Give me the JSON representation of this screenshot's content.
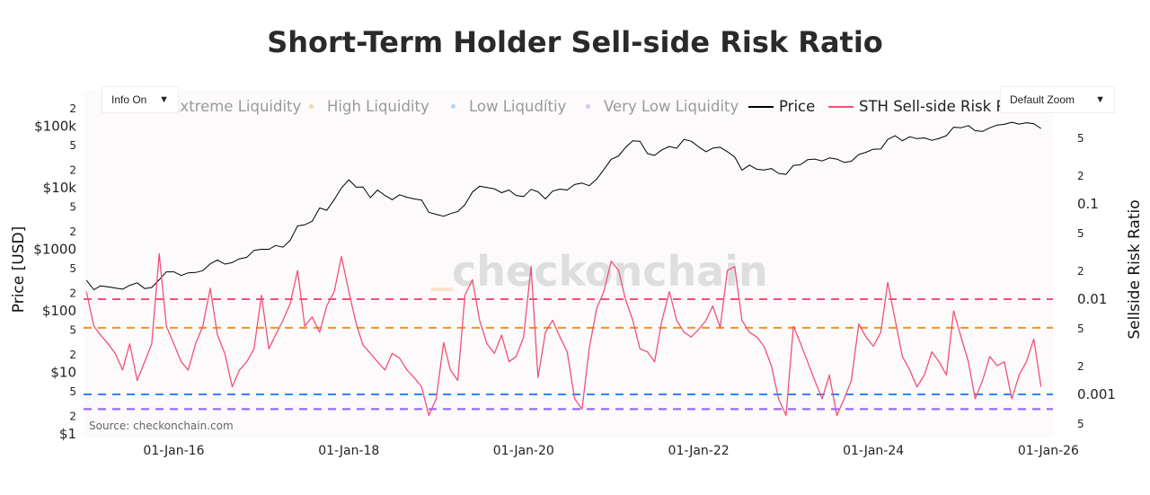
{
  "title": "Short-Term Holder Sell-side Risk Ratio",
  "controls": {
    "info_dropdown": {
      "label": "Info On",
      "arrow": "▼"
    },
    "zoom_dropdown": {
      "label": "Default Zoom",
      "arrow": "▼"
    }
  },
  "watermark": "checkonchain",
  "source": "Source: checkonchain.com",
  "legend": [
    {
      "name": "Extreme Liquidity",
      "color": "#f0517a",
      "state": "legendonly",
      "kind": "dot"
    },
    {
      "name": "High Liquidity",
      "color": "#f7931a",
      "state": "legendonly",
      "kind": "dot"
    },
    {
      "name": "Low Liqudítiy",
      "color": "#2e86ff",
      "state": "legendonly",
      "kind": "dot"
    },
    {
      "name": "Very Low Liquidity",
      "color": "#8c5cff",
      "state": "legendonly",
      "kind": "dot"
    },
    {
      "name": "Price",
      "color": "#000000",
      "state": "visible",
      "kind": "line"
    },
    {
      "name": "STH Sell-side Risk Ratio",
      "color": "#f0517a",
      "state": "visible",
      "kind": "line"
    }
  ],
  "chart_data": {
    "type": "line",
    "title": "Short-Term Holder Sell-side Risk Ratio",
    "xlabel": "",
    "x_ticks": [
      "01-Jan-16",
      "01-Jan-18",
      "01-Jan-20",
      "01-Jan-22",
      "01-Jan-24",
      "01-Jan-26"
    ],
    "x_tick_dates": [
      "2016-01-01",
      "2018-01-01",
      "2020-01-01",
      "2022-01-01",
      "2024-01-01",
      "2026-01-01"
    ],
    "xlim": [
      "2014-12-20",
      "2026-01-20"
    ],
    "y_left": {
      "label": "Price [USD]",
      "scale": "log",
      "range": [
        1,
        250000
      ],
      "ticks": [
        {
          "v": 1,
          "t": "$1"
        },
        {
          "v": 2,
          "t": "2"
        },
        {
          "v": 5,
          "t": "5"
        },
        {
          "v": 10,
          "t": "$10"
        },
        {
          "v": 20,
          "t": "2"
        },
        {
          "v": 50,
          "t": "5"
        },
        {
          "v": 100,
          "t": "$100"
        },
        {
          "v": 200,
          "t": "2"
        },
        {
          "v": 500,
          "t": "5"
        },
        {
          "v": 1000,
          "t": "$1000"
        },
        {
          "v": 2000,
          "t": "2"
        },
        {
          "v": 5000,
          "t": "5"
        },
        {
          "v": 10000,
          "t": "$10k"
        },
        {
          "v": 20000,
          "t": "2"
        },
        {
          "v": 50000,
          "t": "5"
        },
        {
          "v": 100000,
          "t": "$100k"
        },
        {
          "v": 200000,
          "t": "2"
        }
      ]
    },
    "y_right": {
      "label": "Sellside Risk Ratio",
      "scale": "log",
      "range": [
        0.0004,
        0.8
      ],
      "ticks": [
        {
          "v": 0.0005,
          "t": "5"
        },
        {
          "v": 0.001,
          "t": "0.001"
        },
        {
          "v": 0.002,
          "t": "2"
        },
        {
          "v": 0.005,
          "t": "5"
        },
        {
          "v": 0.01,
          "t": "0.01"
        },
        {
          "v": 0.02,
          "t": "2"
        },
        {
          "v": 0.05,
          "t": "5"
        },
        {
          "v": 0.1,
          "t": "0.1"
        },
        {
          "v": 0.2,
          "t": "2"
        },
        {
          "v": 0.5,
          "t": "5"
        }
      ]
    },
    "thresholds": [
      {
        "name": "Extreme Liquidity",
        "value": 0.01,
        "color": "#f0517a"
      },
      {
        "name": "High Liquidity",
        "value": 0.005,
        "color": "#f7931a"
      },
      {
        "name": "Low Liqudítiy",
        "value": 0.001,
        "color": "#2e86ff"
      },
      {
        "name": "Very Low Liquidity",
        "value": 0.0007,
        "color": "#8c5cff"
      }
    ],
    "start_month": "2015-01",
    "series": [
      {
        "name": "Price",
        "axis": "left",
        "color": "#000000",
        "values": [
          315,
          220,
          255,
          245,
          235,
          225,
          260,
          285,
          230,
          240,
          320,
          430,
          430,
          375,
          415,
          420,
          450,
          580,
          670,
          575,
          610,
          700,
          740,
          960,
          1000,
          1000,
          1150,
          1080,
          1400,
          2400,
          2500,
          2850,
          4700,
          4300,
          6400,
          9900,
          13500,
          10200,
          10300,
          6900,
          9200,
          7500,
          6400,
          7700,
          7000,
          6600,
          6300,
          4000,
          3700,
          3450,
          3800,
          4100,
          5300,
          8500,
          10600,
          10100,
          9600,
          8300,
          9200,
          7500,
          7200,
          9400,
          8600,
          6600,
          8800,
          9500,
          9200,
          11300,
          11900,
          10800,
          13800,
          19700,
          29000,
          33000,
          45000,
          58000,
          57000,
          36000,
          33500,
          41500,
          47000,
          43800,
          61000,
          57000,
          46300,
          38500,
          44000,
          45500,
          38500,
          31700,
          19300,
          23300,
          20000,
          19400,
          20500,
          17100,
          16500,
          23100,
          23600,
          28500,
          29200,
          27200,
          30500,
          29200,
          25900,
          27000,
          34700,
          37700,
          42300,
          42600,
          61000,
          70000,
          58000,
          67500,
          62800,
          64600,
          58900,
          63300,
          70200,
          96400,
          94400,
          102400,
          84400,
          82500,
          94200,
          104600,
          107200,
          115800,
          108300,
          114000,
          109500,
          92000
        ]
      },
      {
        "name": "STH Sell-side Risk Ratio",
        "axis": "right",
        "color": "#f0517a",
        "values": [
          0.012,
          0.0052,
          0.0042,
          0.0034,
          0.0027,
          0.0018,
          0.0034,
          0.0014,
          0.0022,
          0.0034,
          0.03,
          0.0052,
          0.0034,
          0.0022,
          0.0018,
          0.0034,
          0.0052,
          0.013,
          0.0042,
          0.0027,
          0.0012,
          0.0018,
          0.0022,
          0.003,
          0.011,
          0.003,
          0.0042,
          0.006,
          0.009,
          0.02,
          0.0052,
          0.0065,
          0.0045,
          0.0085,
          0.012,
          0.028,
          0.012,
          0.0055,
          0.0033,
          0.0027,
          0.0022,
          0.0018,
          0.0027,
          0.0024,
          0.0018,
          0.0015,
          0.0012,
          0.0006,
          0.0009,
          0.0035,
          0.0018,
          0.0014,
          0.011,
          0.016,
          0.006,
          0.0034,
          0.0027,
          0.0042,
          0.0022,
          0.0025,
          0.004,
          0.022,
          0.0015,
          0.0045,
          0.006,
          0.004,
          0.0028,
          0.0009,
          0.0007,
          0.003,
          0.008,
          0.012,
          0.025,
          0.02,
          0.01,
          0.006,
          0.003,
          0.0028,
          0.0022,
          0.006,
          0.012,
          0.006,
          0.0045,
          0.004,
          0.0048,
          0.006,
          0.0085,
          0.005,
          0.02,
          0.022,
          0.006,
          0.0045,
          0.004,
          0.0032,
          0.002,
          0.0009,
          0.0006,
          0.0052,
          0.0035,
          0.0022,
          0.0014,
          0.0009,
          0.0016,
          0.0006,
          0.0009,
          0.0014,
          0.0055,
          0.004,
          0.0032,
          0.0045,
          0.015,
          0.006,
          0.0025,
          0.0018,
          0.0012,
          0.0016,
          0.0028,
          0.0022,
          0.0016,
          0.0075,
          0.004,
          0.0022,
          0.0009,
          0.0014,
          0.0025,
          0.002,
          0.0022,
          0.0009,
          0.0016,
          0.0022,
          0.0038,
          0.0012
        ]
      }
    ]
  }
}
